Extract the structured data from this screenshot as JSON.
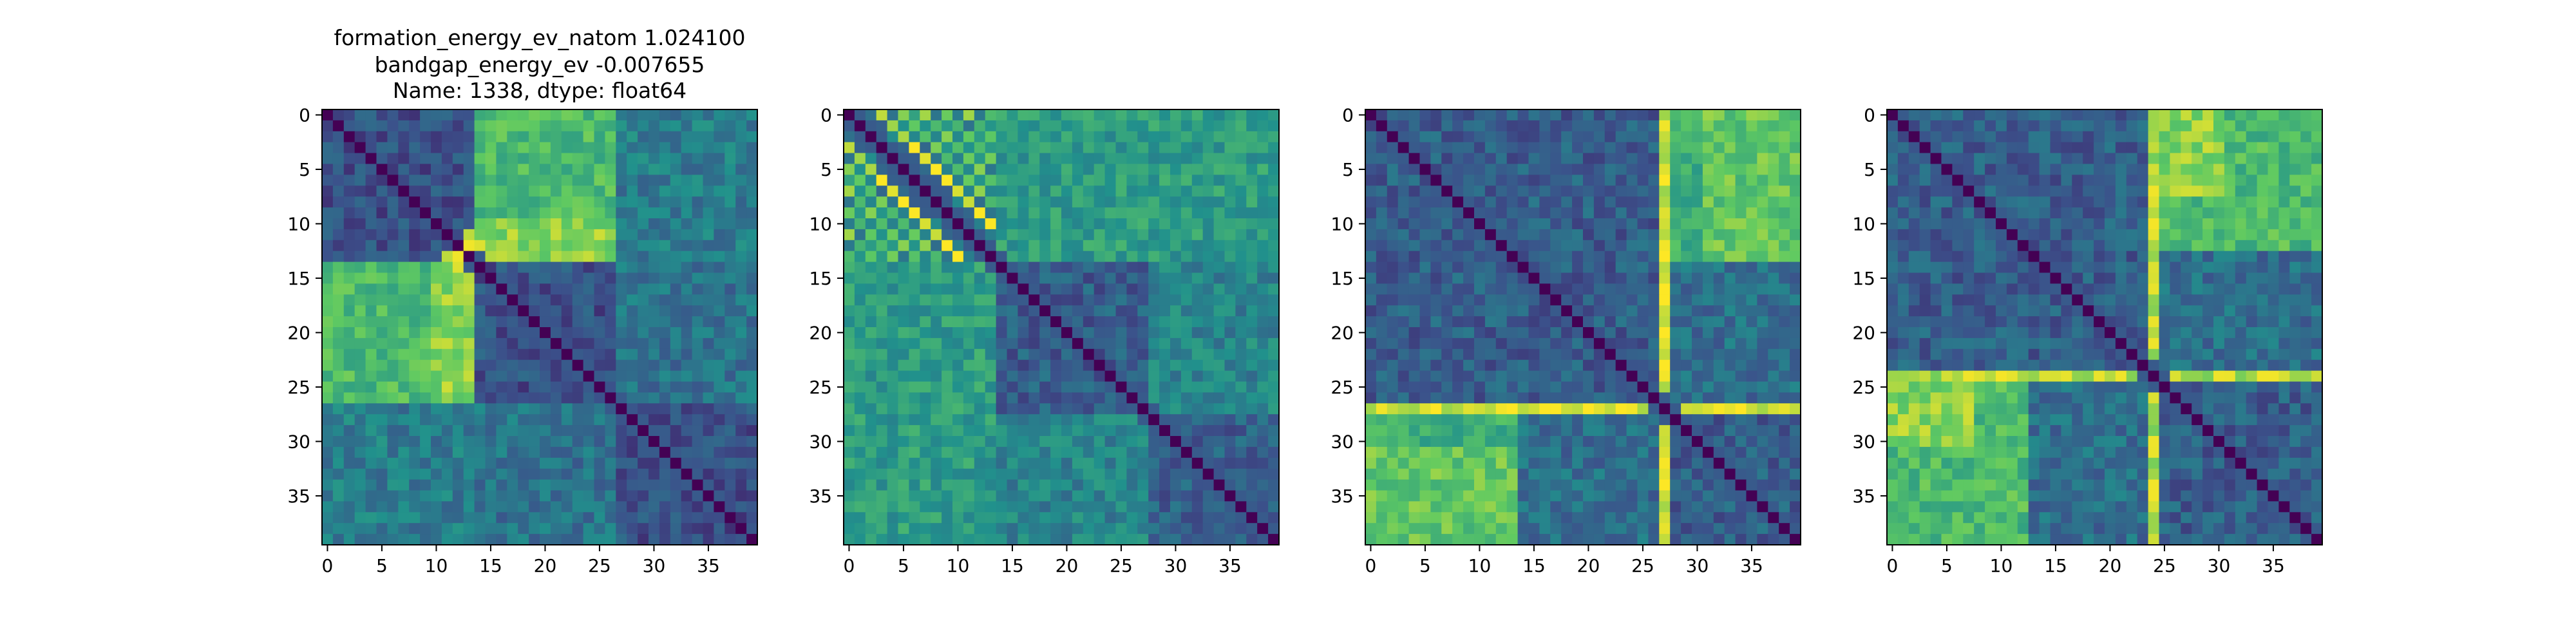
{
  "chart_data": {
    "type": "heatmap",
    "title_lines": [
      "formation_energy_ev_natom    1.024100",
      "bandgap_energy_ev           -0.007655",
      "Name: 1338, dtype: float64"
    ],
    "n": 40,
    "xticks": [
      0,
      5,
      10,
      15,
      20,
      25,
      30,
      35
    ],
    "yticks": [
      0,
      5,
      10,
      15,
      20,
      25,
      30,
      35
    ],
    "colormap": [
      "#440154",
      "#3b528b",
      "#21918c",
      "#5ec962",
      "#fde725"
    ],
    "panels": [
      {
        "base": 0.25,
        "groups": [
          [
            0,
            13
          ],
          [
            14,
            26
          ],
          [
            27,
            39
          ]
        ],
        "blocks": [
          {
            "rows": [
              0,
              13
            ],
            "cols": [
              14,
              26
            ],
            "v": 0.68
          },
          {
            "rows": [
              14,
              26
            ],
            "cols": [
              0,
              13
            ],
            "v": 0.68
          },
          {
            "rows": [
              10,
              13
            ],
            "cols": [
              14,
              26
            ],
            "v": 0.82
          },
          {
            "rows": [
              14,
              26
            ],
            "cols": [
              10,
              13
            ],
            "v": 0.82
          },
          {
            "rows": [
              27,
              39
            ],
            "cols": [
              0,
              13
            ],
            "v": 0.42
          },
          {
            "rows": [
              0,
              13
            ],
            "cols": [
              27,
              39
            ],
            "v": 0.42
          },
          {
            "rows": [
              27,
              39
            ],
            "cols": [
              14,
              26
            ],
            "v": 0.38
          },
          {
            "rows": [
              14,
              26
            ],
            "cols": [
              27,
              39
            ],
            "v": 0.38
          }
        ],
        "hot_cells": [
          [
            13,
            12,
            0.98
          ],
          [
            12,
            13,
            0.98
          ],
          [
            14,
            12,
            0.95
          ],
          [
            12,
            14,
            0.95
          ],
          [
            13,
            11,
            0.9
          ],
          [
            11,
            13,
            0.9
          ]
        ]
      },
      {
        "base": 0.3,
        "groups": [
          [
            0,
            13
          ],
          [
            14,
            27
          ],
          [
            28,
            39
          ]
        ],
        "blocks": [
          {
            "rows": [
              0,
              13
            ],
            "cols": [
              0,
              13
            ],
            "v": 0.62
          },
          {
            "rows": [
              0,
              13
            ],
            "cols": [
              14,
              39
            ],
            "v": 0.55
          },
          {
            "rows": [
              14,
              39
            ],
            "cols": [
              0,
              13
            ],
            "v": 0.55
          },
          {
            "rows": [
              28,
              39
            ],
            "cols": [
              14,
              27
            ],
            "v": 0.45
          },
          {
            "rows": [
              14,
              27
            ],
            "cols": [
              28,
              39
            ],
            "v": 0.45
          }
        ],
        "checker": {
          "range": [
            0,
            13
          ],
          "hi": 0.95,
          "lo": 0.15
        }
      },
      {
        "base": 0.3,
        "groups": [
          [
            0,
            26
          ],
          [
            27,
            39
          ]
        ],
        "blocks": [
          {
            "rows": [
              27,
              39
            ],
            "cols": [
              0,
              13
            ],
            "v": 0.62
          },
          {
            "rows": [
              0,
              13
            ],
            "cols": [
              27,
              39
            ],
            "v": 0.62
          },
          {
            "rows": [
              0,
              13
            ],
            "cols": [
              31,
              39
            ],
            "v": 0.74
          },
          {
            "rows": [
              31,
              39
            ],
            "cols": [
              0,
              13
            ],
            "v": 0.74
          }
        ],
        "stripes": [
          {
            "index": 27,
            "v": 0.95
          }
        ]
      },
      {
        "base": 0.3,
        "groups": [
          [
            0,
            23
          ],
          [
            24,
            39
          ]
        ],
        "blocks": [
          {
            "rows": [
              24,
              39
            ],
            "cols": [
              0,
              12
            ],
            "v": 0.68
          },
          {
            "rows": [
              0,
              12
            ],
            "cols": [
              24,
              39
            ],
            "v": 0.68
          },
          {
            "rows": [
              0,
              7
            ],
            "cols": [
              24,
              30
            ],
            "v": 0.82
          },
          {
            "rows": [
              24,
              30
            ],
            "cols": [
              0,
              7
            ],
            "v": 0.82
          }
        ],
        "stripes": [
          {
            "index": 24,
            "v": 0.88
          }
        ]
      }
    ]
  }
}
